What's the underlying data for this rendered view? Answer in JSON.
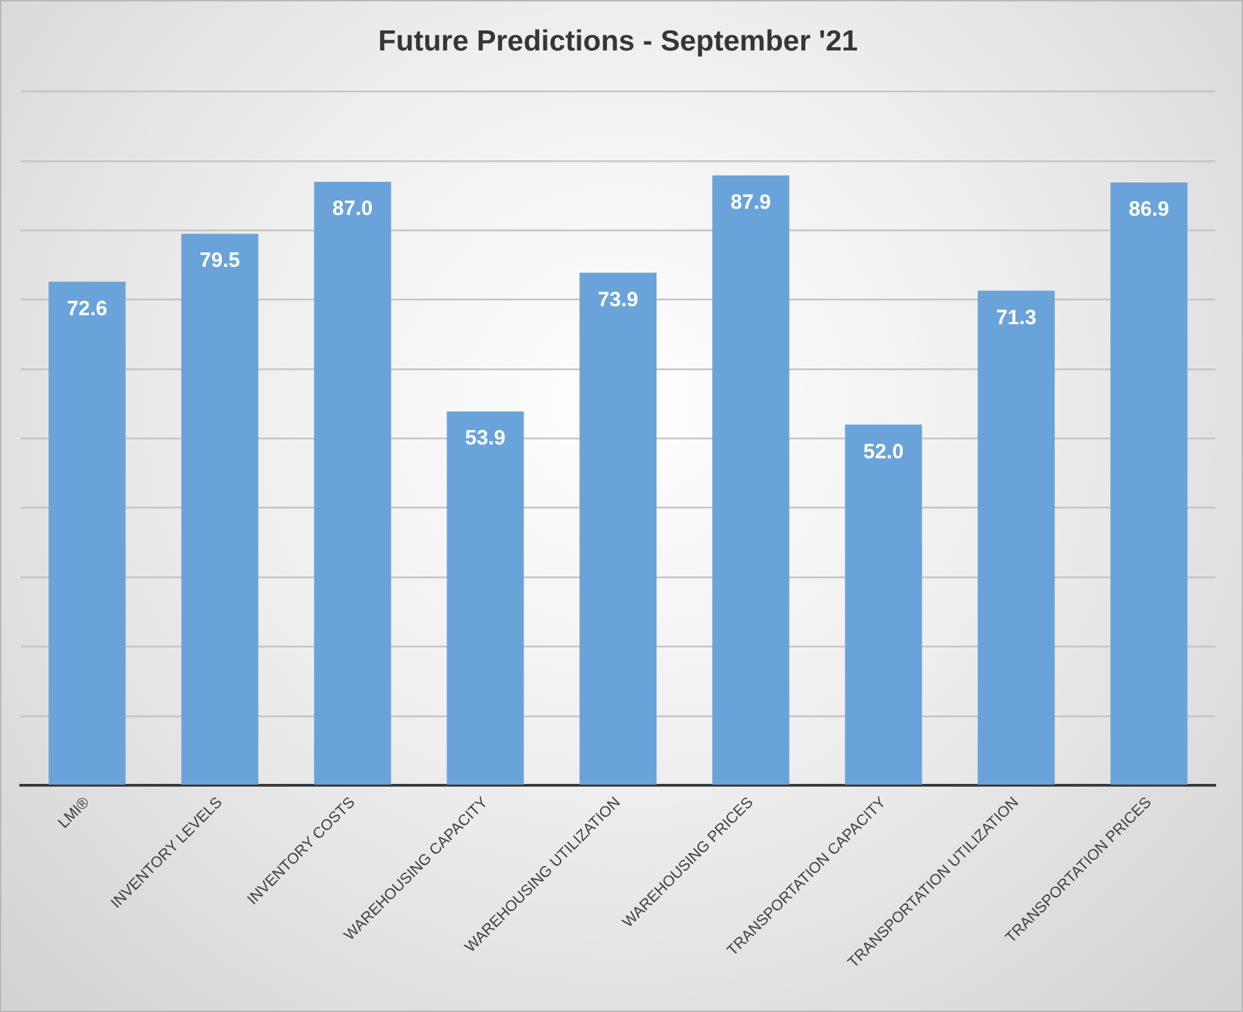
{
  "chart_data": {
    "type": "bar",
    "title": "Future Predictions - September '21",
    "categories": [
      "LMI®",
      "INVENTORY LEVELS",
      "INVENTORY COSTS",
      "WAREHOUSING CAPACITY",
      "WAREHOUSING UTILIZATION",
      "WAREHOUSING PRICES",
      "TRANSPORTATION CAPACITY",
      "TRANSPORTATION UTILIZATION",
      "TRANSPORTATION PRICES"
    ],
    "values": [
      72.6,
      79.5,
      87.0,
      53.9,
      73.9,
      87.9,
      52.0,
      71.3,
      86.9
    ],
    "value_labels": [
      "72.6",
      "79.5",
      "87.0",
      "53.9",
      "73.9",
      "87.9",
      "52.0",
      "71.3",
      "86.9"
    ],
    "color": "#6aa3d9",
    "ylim": [
      0,
      100
    ],
    "yticks": [
      {
        "value": 0,
        "label": null
      },
      {
        "value": 10,
        "label": null
      },
      {
        "value": 20,
        "label": null
      },
      {
        "value": 30,
        "label": null
      },
      {
        "value": 40,
        "label": null
      },
      {
        "value": 50,
        "label": null
      },
      {
        "value": 60,
        "label": null
      },
      {
        "value": 70,
        "label": null
      },
      {
        "value": 80,
        "label": null
      },
      {
        "value": 90,
        "label": null
      },
      {
        "value": 100,
        "label": null
      }
    ],
    "grid": "y",
    "tick_labels": "x",
    "legend": false
  }
}
